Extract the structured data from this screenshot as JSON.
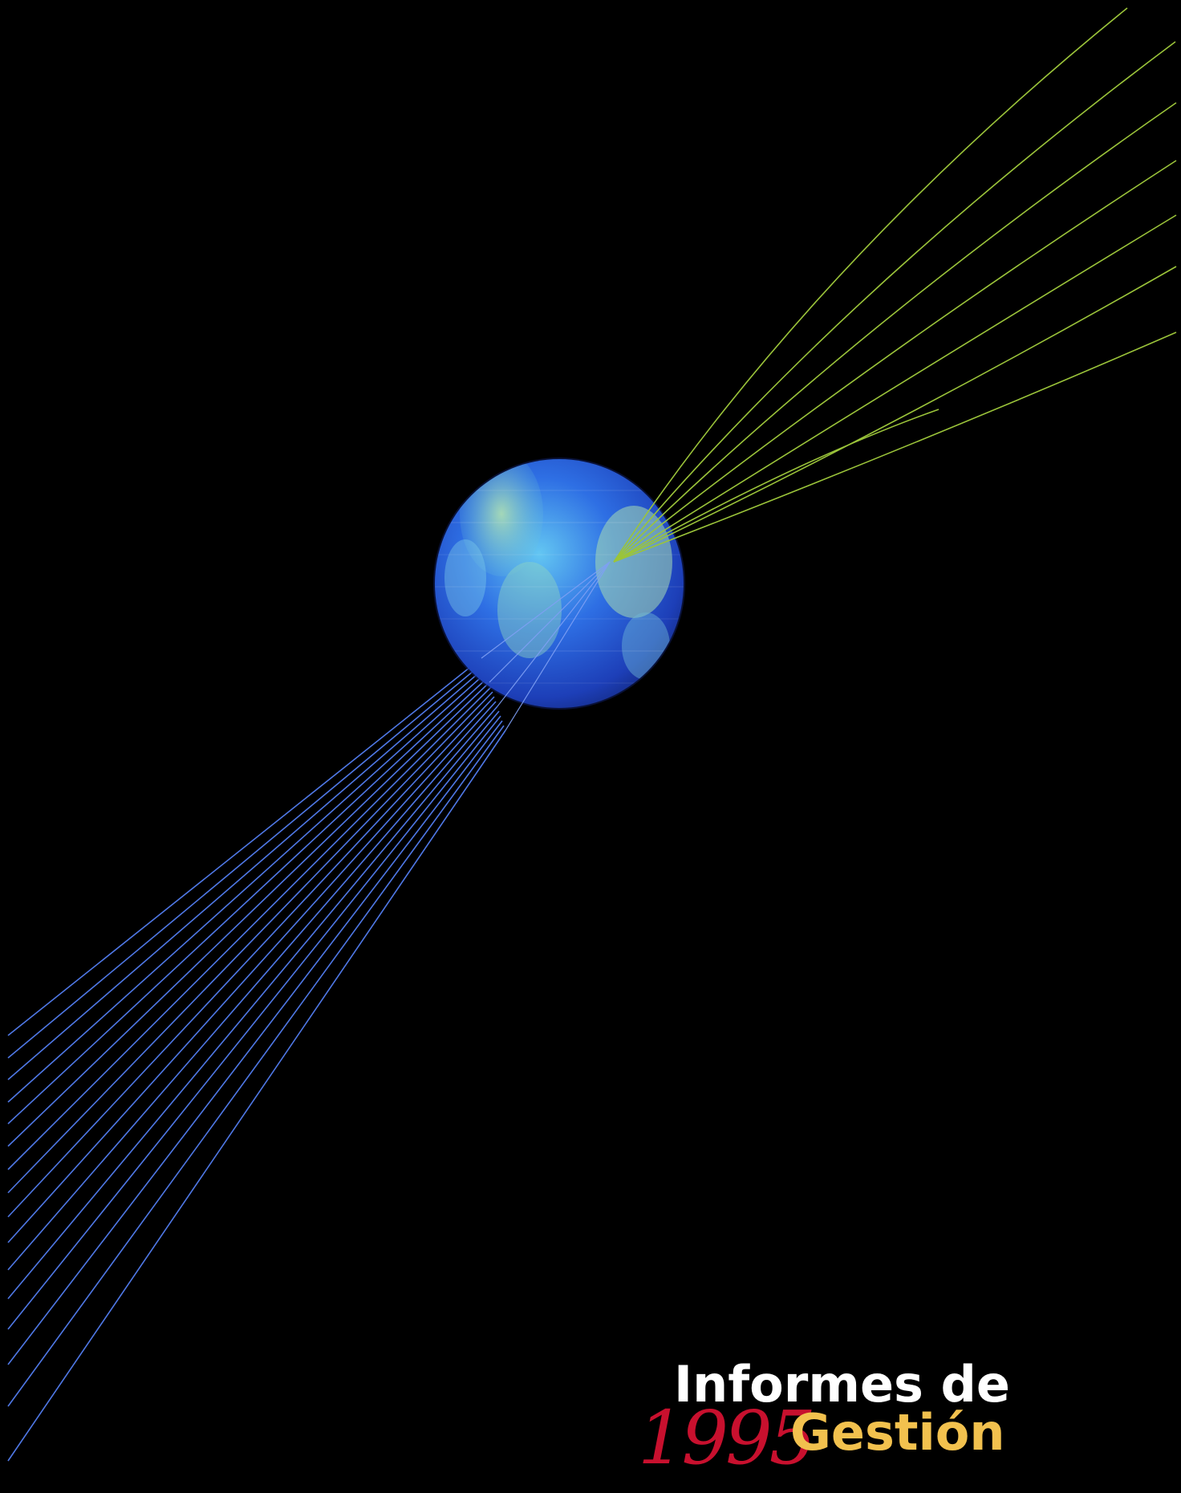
{
  "cover": {
    "title_line1": "Informes de",
    "title_line2": "Gestión",
    "year": "1995"
  },
  "colors": {
    "background": "#000000",
    "title_white": "#ffffff",
    "title_yellow": "#f2c14e",
    "year_red": "#c8102e",
    "beams_green": "#9bc43a",
    "beams_blue": "#4f78e6",
    "globe_blue": "#2a5fe0"
  },
  "icons": {
    "globe": "globe-icon"
  }
}
